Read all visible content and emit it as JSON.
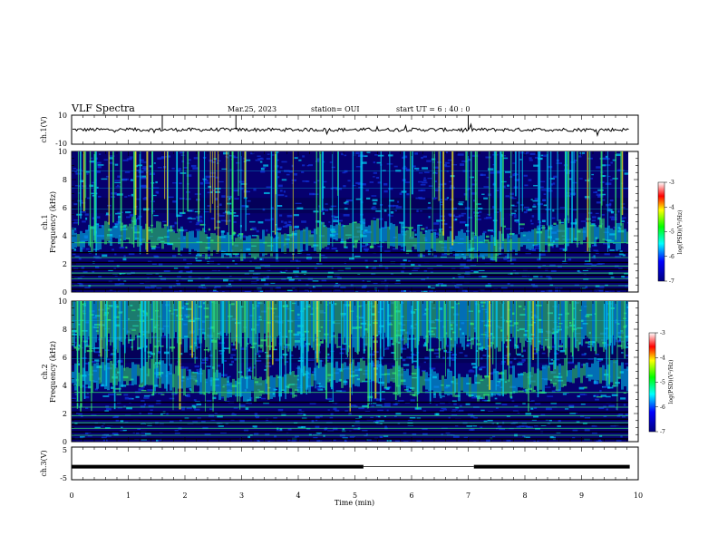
{
  "header": {
    "title": "VLF Spectra",
    "date": "Mar.25, 2023",
    "station": "station= OUI",
    "start": "start  UT =   6 : 40 : 0"
  },
  "colors": {
    "bg_dark": "#06006e",
    "low": "#1030d8",
    "mid": "#00c8f0",
    "high": "#30e070",
    "peak": "#e8e020"
  },
  "chart_data": [
    {
      "id": "ch1-waveform",
      "type": "line",
      "ylabel": "ch.1(V)",
      "ylim": [
        -10,
        10
      ],
      "yticks": [
        "10",
        "-10"
      ],
      "baseline": 0,
      "amplitude": 1.2
    },
    {
      "id": "ch1-spectrogram",
      "type": "heatmap",
      "ylabel": "ch.1\nFrequency (kHz)",
      "ylabel_lines": [
        "ch.1",
        "Frequency (kHz)"
      ],
      "ylim": [
        0,
        10
      ],
      "yticks": [
        "0",
        "2",
        "4",
        "6",
        "8",
        "10"
      ],
      "colorbar": {
        "label": "log(PSD)(V²/Hz)",
        "ticks": [
          "-3",
          "-4",
          "-5",
          "-6",
          "-7"
        ],
        "range": [
          -7,
          -3
        ]
      }
    },
    {
      "id": "ch2-spectrogram",
      "type": "heatmap",
      "ylabel": "ch.2\nFrequency (kHz)",
      "ylabel_lines": [
        "ch.2",
        "Frequency (kHz)"
      ],
      "ylim": [
        0,
        10
      ],
      "yticks": [
        "0",
        "2",
        "4",
        "6",
        "8",
        "10"
      ],
      "colorbar": {
        "label": "log(PSD)(V²/Hz)",
        "ticks": [
          "-3",
          "-4",
          "-5",
          "-6",
          "-7"
        ],
        "range": [
          -7,
          -3
        ]
      }
    },
    {
      "id": "ch3-signal",
      "type": "line",
      "ylabel": "ch.3(V)",
      "ylim": [
        -5,
        5
      ],
      "yticks": [
        "5",
        "-5"
      ],
      "level": -1,
      "gaps": [
        [
          5.15,
          7.1
        ]
      ]
    }
  ],
  "xaxis": {
    "label": "Time  (min)",
    "xlim": [
      0,
      10
    ],
    "ticks": [
      "0",
      "1",
      "2",
      "3",
      "4",
      "5",
      "6",
      "7",
      "8",
      "9",
      "10"
    ],
    "data_end": 9.85
  }
}
